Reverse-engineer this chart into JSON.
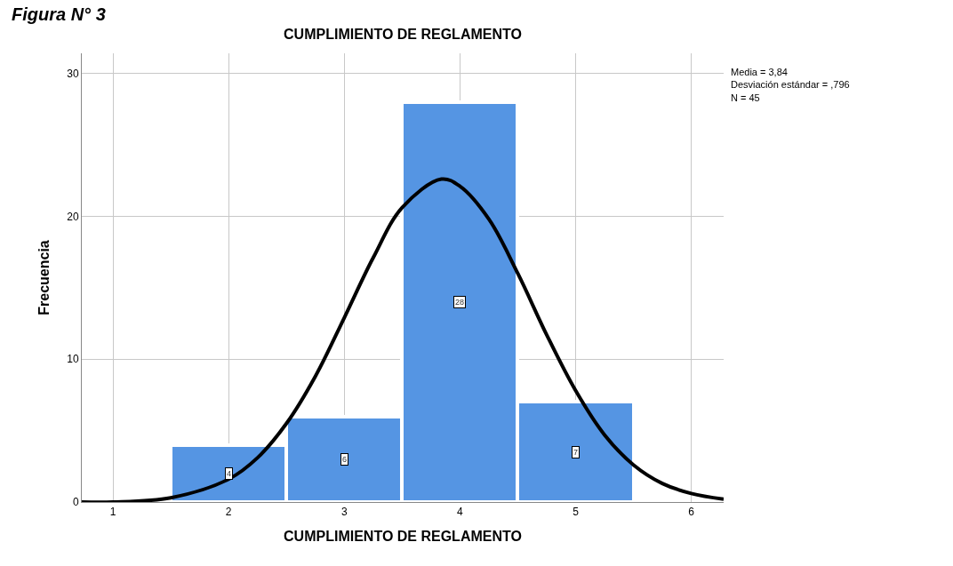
{
  "chart_data": {
    "type": "histogram",
    "title": "CUMPLIMIENTO DE REGLAMENTO",
    "xlabel": "CUMPLIMIENTO DE REGLAMENTO",
    "ylabel": "Frecuencia",
    "bins": [
      1.5,
      2.5,
      3.5,
      4.5,
      5.5
    ],
    "values": [
      4,
      6,
      28,
      7
    ],
    "color": "#5595e3",
    "value_labels": [
      "4",
      "6",
      "28",
      "7"
    ],
    "series": [
      {
        "type": "line",
        "color": "#000000",
        "x": [
          0.73,
          1.0,
          1.5,
          2.0,
          2.25,
          2.5,
          2.75,
          3.0,
          3.25,
          3.5,
          3.84,
          4.0,
          4.25,
          4.5,
          4.75,
          5.0,
          5.25,
          5.5,
          5.75,
          6.0,
          6.28
        ],
        "values": [
          0.0,
          0.0,
          0.3,
          1.6,
          3.1,
          5.5,
          8.8,
          12.9,
          17.1,
          20.6,
          22.6,
          22.1,
          19.8,
          16.0,
          11.7,
          7.8,
          4.7,
          2.6,
          1.3,
          0.6,
          0.2
        ]
      }
    ],
    "xlim": [
      0.73,
      6.28
    ],
    "xticks": [
      1,
      2,
      3,
      4,
      5,
      6
    ],
    "ylim": [
      0,
      31.4
    ],
    "yticks": [
      0,
      10,
      20,
      30
    ],
    "grid": true,
    "marker": "none",
    "line_style": "solid",
    "annotations": [
      "Figura N° 3",
      "Media = 3,84\nDesviación estándar = ,796\nN = 45"
    ]
  }
}
